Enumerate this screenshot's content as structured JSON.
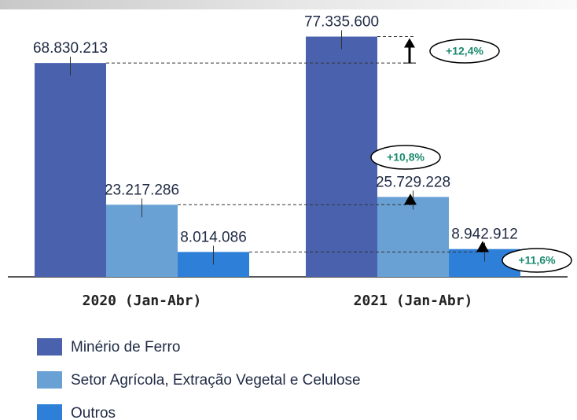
{
  "chart_data": {
    "type": "bar",
    "categories": [
      "2020 (Jan-Abr)",
      "2021 (Jan-Abr)"
    ],
    "series": [
      {
        "name": "Minério de Ferro",
        "color": "#4a62ae",
        "values": [
          68830213,
          77335600
        ],
        "value_labels": [
          "68.830.213",
          "77.335.600"
        ]
      },
      {
        "name": "Setor Agrícola, Extração Vegetal e Celulose",
        "color": "#69a1d5",
        "values": [
          23217286,
          25729228
        ],
        "value_labels": [
          "23.217.286",
          "25.729.228"
        ]
      },
      {
        "name": "Outros",
        "color": "#2e7fd8",
        "values": [
          8014086,
          8942912
        ],
        "value_labels": [
          "8.014.086",
          "8.942.912"
        ]
      }
    ],
    "annotations": [
      "+12,4%",
      "+10,8%",
      "+11,6%"
    ],
    "legend": "bottom-left"
  }
}
